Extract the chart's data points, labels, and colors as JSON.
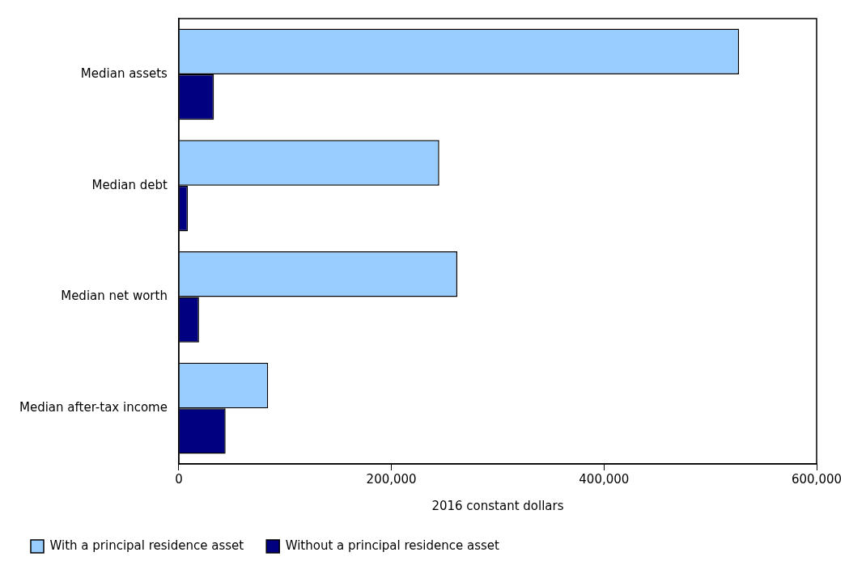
{
  "chart_data": {
    "type": "bar",
    "orientation": "horizontal",
    "xlabel": "2016 constant dollars",
    "categories": [
      "Median assets",
      "Median debt",
      "Median net worth",
      "Median after-tax income"
    ],
    "series": [
      {
        "name": "With a principal residence asset",
        "color": "#99ccff",
        "values": [
          527000,
          245000,
          262000,
          84000
        ]
      },
      {
        "name": "Without a principal residence asset",
        "color": "#000080",
        "values": [
          33000,
          8500,
          19000,
          44000
        ]
      }
    ],
    "xlim": [
      0,
      600000
    ],
    "xticks": [
      {
        "value": 0,
        "label": "0"
      },
      {
        "value": 200000,
        "label": "200,000"
      },
      {
        "value": 400000,
        "label": "400,000"
      },
      {
        "value": 600000,
        "label": "600,000"
      }
    ],
    "grid": false,
    "legend": "bottom"
  }
}
